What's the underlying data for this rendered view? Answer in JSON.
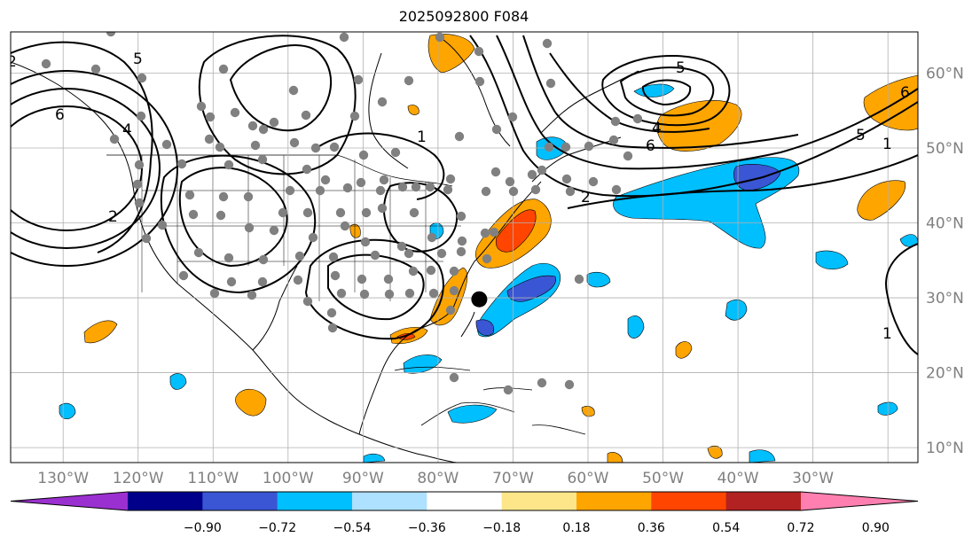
{
  "title": "2025092800 F084",
  "map": {
    "lon_range": [
      -137,
      -16
    ],
    "lat_range": [
      8,
      65.5
    ],
    "grid_lons": [
      -130,
      -120,
      -110,
      -100,
      -90,
      -80,
      -70,
      -60,
      -50,
      -40,
      -30,
      -20
    ],
    "grid_lats": [
      10,
      20,
      30,
      40,
      50,
      60
    ],
    "lon_labels": [
      "130°W",
      "120°W",
      "110°W",
      "100°W",
      "90°W",
      "80°W",
      "70°W",
      "60°W",
      "50°W",
      "40°W",
      "30°W"
    ],
    "lat_labels": [
      "10°N",
      "20°N",
      "30°N",
      "40°N",
      "50°N",
      "60°N"
    ],
    "grid": true,
    "storm_marker": {
      "lon": -74.5,
      "lat": 29.8
    }
  },
  "contour_labels": [
    "2",
    "5",
    "6",
    "4",
    "2",
    "1",
    "5",
    "4",
    "6",
    "5",
    "6",
    "2",
    "1",
    "1"
  ],
  "colorbar": {
    "ticks": [
      "−0.90",
      "−0.72",
      "−0.54",
      "−0.36",
      "−0.18",
      "0.18",
      "0.36",
      "0.54",
      "0.72",
      "0.90"
    ],
    "colors": [
      "#9b30d0",
      "#00008b",
      "#3a56d4",
      "#00bfff",
      "#aee0ff",
      "#ffffff",
      "#fde68a",
      "#ffa500",
      "#ff4500",
      "#b22222",
      "#ff80b0"
    ],
    "extend": "both"
  }
}
